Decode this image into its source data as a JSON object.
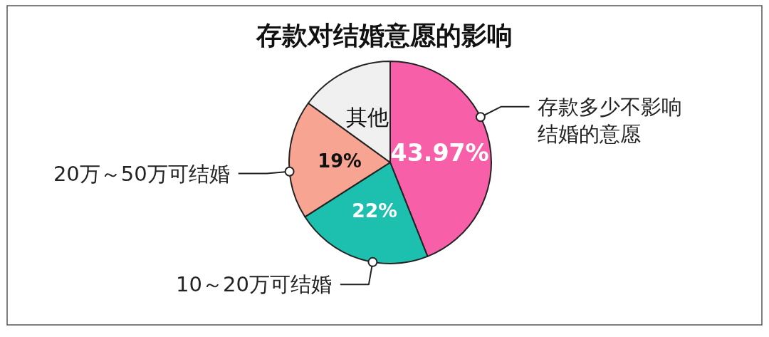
{
  "chart_data": {
    "type": "pie",
    "title": "存款对结婚意愿的影响",
    "categories": [
      "存款多少不影响结婚的意愿",
      "10～20万可结婚",
      "20万～50万可结婚",
      "其他"
    ],
    "values": [
      43.97,
      22,
      19,
      15.03
    ],
    "value_labels": [
      "43.97%",
      "22%",
      "19%",
      null
    ],
    "colors": [
      "#f760a9",
      "#1dbfae",
      "#f7a493",
      "#f0f0f0"
    ]
  }
}
